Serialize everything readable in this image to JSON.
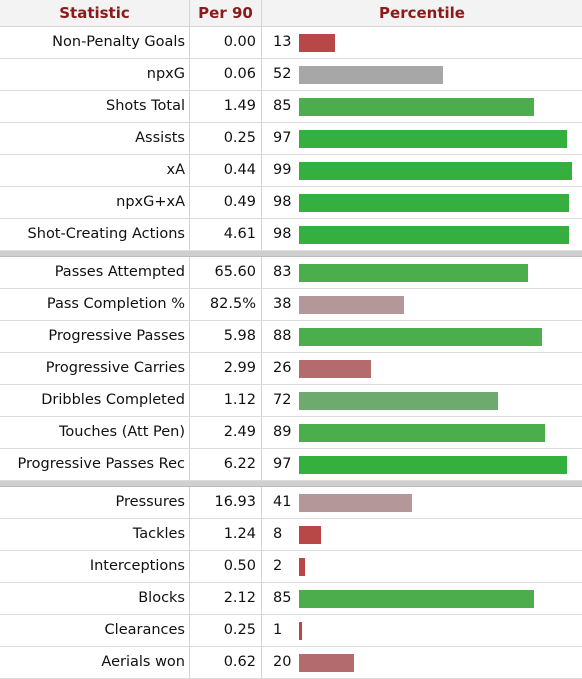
{
  "headers": {
    "statistic": "Statistic",
    "per90": "Per 90",
    "percentile": "Percentile"
  },
  "groups": [
    [
      {
        "stat": "Non-Penalty Goals",
        "per90": "0.00",
        "percentile": 13
      },
      {
        "stat": "npxG",
        "per90": "0.06",
        "percentile": 52
      },
      {
        "stat": "Shots Total",
        "per90": "1.49",
        "percentile": 85
      },
      {
        "stat": "Assists",
        "per90": "0.25",
        "percentile": 97
      },
      {
        "stat": "xA",
        "per90": "0.44",
        "percentile": 99
      },
      {
        "stat": "npxG+xA",
        "per90": "0.49",
        "percentile": 98
      },
      {
        "stat": "Shot-Creating Actions",
        "per90": "4.61",
        "percentile": 98
      }
    ],
    [
      {
        "stat": "Passes Attempted",
        "per90": "65.60",
        "percentile": 83
      },
      {
        "stat": "Pass Completion %",
        "per90": "82.5%",
        "percentile": 38
      },
      {
        "stat": "Progressive Passes",
        "per90": "5.98",
        "percentile": 88
      },
      {
        "stat": "Progressive Carries",
        "per90": "2.99",
        "percentile": 26
      },
      {
        "stat": "Dribbles Completed",
        "per90": "1.12",
        "percentile": 72
      },
      {
        "stat": "Touches (Att Pen)",
        "per90": "2.49",
        "percentile": 89
      },
      {
        "stat": "Progressive Passes Rec",
        "per90": "6.22",
        "percentile": 97
      }
    ],
    [
      {
        "stat": "Pressures",
        "per90": "16.93",
        "percentile": 41
      },
      {
        "stat": "Tackles",
        "per90": "1.24",
        "percentile": 8
      },
      {
        "stat": "Interceptions",
        "per90": "0.50",
        "percentile": 2
      },
      {
        "stat": "Blocks",
        "per90": "2.12",
        "percentile": 85
      },
      {
        "stat": "Clearances",
        "per90": "0.25",
        "percentile": 1
      },
      {
        "stat": "Aerials won",
        "per90": "0.62",
        "percentile": 20
      }
    ]
  ]
}
